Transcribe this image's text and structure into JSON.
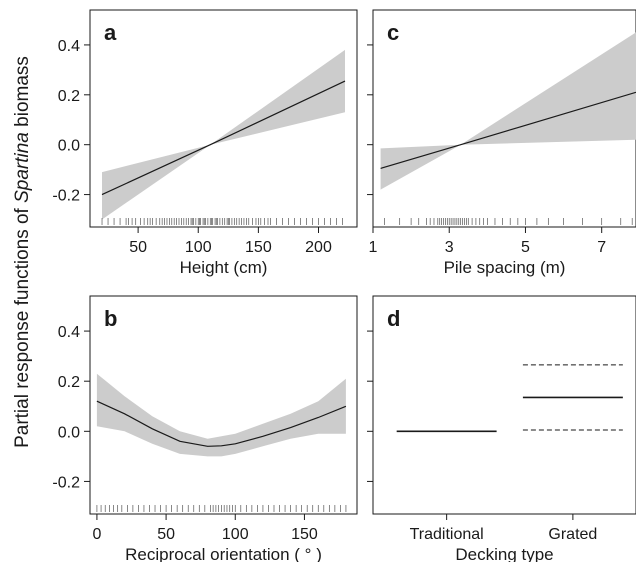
{
  "figure": {
    "ylabel_prefix": "Partial response functions of ",
    "ylabel_italic": "Spartina",
    "ylabel_suffix": " biomass"
  },
  "chart_data": [
    {
      "id": "a",
      "panel_letter": "a",
      "type": "line",
      "xlabel": "Height (cm)",
      "xlim": [
        10,
        232
      ],
      "ylim": [
        -0.33,
        0.54
      ],
      "xticks": [
        50,
        100,
        150,
        200
      ],
      "yticks": [
        -0.2,
        0.0,
        0.2,
        0.4
      ],
      "ytick_labels": [
        "-0.2",
        "0.0",
        "0.2",
        "0.4"
      ],
      "show_yticklabels": true,
      "grid": false,
      "band_color": "#cccccc",
      "line": {
        "x": [
          20,
          110,
          222
        ],
        "y": [
          -0.2,
          0.0,
          0.255
        ]
      },
      "band_lower": [
        -0.3,
        0.0,
        0.13
      ],
      "band_upper": [
        -0.11,
        0.0,
        0.38
      ],
      "rug": [
        20,
        25,
        30,
        35,
        40,
        42,
        45,
        48,
        52,
        55,
        58,
        60,
        62,
        65,
        68,
        70,
        72,
        74,
        76,
        78,
        80,
        82,
        84,
        86,
        88,
        90,
        92,
        94,
        95,
        96,
        98,
        100,
        101,
        102,
        104,
        105,
        106,
        108,
        110,
        111,
        112,
        114,
        115,
        116,
        118,
        120,
        122,
        124,
        125,
        126,
        128,
        130,
        132,
        134,
        136,
        138,
        140,
        142,
        145,
        148,
        150,
        152,
        155,
        158,
        160,
        165,
        170,
        175,
        180,
        185,
        190,
        195,
        200,
        205,
        210,
        215,
        220
      ]
    },
    {
      "id": "c",
      "panel_letter": "c",
      "type": "line",
      "xlabel": "Pile spacing (m)",
      "xlim": [
        1,
        7.9
      ],
      "ylim": [
        -0.33,
        0.54
      ],
      "xticks": [
        1,
        3,
        5,
        7
      ],
      "yticks": [
        -0.2,
        0.0,
        0.2,
        0.4
      ],
      "ytick_labels": [
        "-0.2",
        "0.0",
        "0.2",
        "0.4"
      ],
      "show_yticklabels": false,
      "grid": false,
      "band_color": "#cccccc",
      "line": {
        "x": [
          1.2,
          3.3,
          7.9
        ],
        "y": [
          -0.095,
          0.0,
          0.21
        ]
      },
      "band_lower": [
        -0.18,
        0.0,
        0.02
      ],
      "band_upper": [
        -0.015,
        0.0,
        0.45
      ],
      "rug": [
        1.3,
        1.7,
        2.0,
        2.2,
        2.4,
        2.5,
        2.6,
        2.7,
        2.75,
        2.8,
        2.85,
        2.9,
        2.95,
        3.0,
        3.05,
        3.1,
        3.15,
        3.2,
        3.25,
        3.3,
        3.35,
        3.4,
        3.45,
        3.5,
        3.6,
        3.7,
        3.8,
        3.9,
        4.0,
        4.2,
        4.4,
        4.6,
        4.8,
        5.0,
        5.3,
        5.6,
        6.0,
        6.5,
        7.0,
        7.5,
        7.8
      ]
    },
    {
      "id": "b",
      "panel_letter": "b",
      "type": "line",
      "xlabel": "Reciprocal orientation ( ° )",
      "xlim": [
        -5,
        188
      ],
      "ylim": [
        -0.33,
        0.54
      ],
      "xticks": [
        0,
        50,
        100,
        150
      ],
      "yticks": [
        -0.2,
        0.0,
        0.2,
        0.4
      ],
      "ytick_labels": [
        "-0.2",
        "0.0",
        "0.2",
        "0.4"
      ],
      "show_yticklabels": true,
      "grid": false,
      "band_color": "#cccccc",
      "line": {
        "x": [
          0,
          20,
          40,
          60,
          80,
          90,
          100,
          120,
          140,
          160,
          180
        ],
        "y": [
          0.12,
          0.07,
          0.01,
          -0.04,
          -0.06,
          -0.058,
          -0.05,
          -0.02,
          0.015,
          0.055,
          0.1
        ]
      },
      "band_lower": [
        0.02,
        0.0,
        -0.05,
        -0.09,
        -0.1,
        -0.1,
        -0.09,
        -0.06,
        -0.03,
        -0.01,
        -0.01
      ],
      "band_upper": [
        0.23,
        0.14,
        0.06,
        0.0,
        -0.03,
        -0.02,
        -0.01,
        0.03,
        0.07,
        0.12,
        0.21
      ],
      "rug": [
        0,
        3,
        6,
        9,
        12,
        15,
        18,
        22,
        26,
        30,
        34,
        38,
        42,
        46,
        50,
        54,
        58,
        62,
        66,
        70,
        74,
        78,
        82,
        84,
        86,
        88,
        90,
        92,
        94,
        96,
        98,
        100,
        104,
        108,
        112,
        116,
        120,
        124,
        128,
        132,
        136,
        140,
        144,
        148,
        152,
        156,
        160,
        164,
        168,
        172,
        176,
        180
      ]
    },
    {
      "id": "d",
      "panel_letter": "d",
      "type": "line",
      "xlabel": "Decking type",
      "categories": [
        "Traditional",
        "Grated"
      ],
      "ylim": [
        -0.33,
        0.54
      ],
      "yticks": [
        -0.2,
        0.0,
        0.2,
        0.4
      ],
      "ytick_labels": [
        "-0.2",
        "0.0",
        "0.2",
        "0.4"
      ],
      "show_yticklabels": false,
      "grid": false,
      "series": [
        {
          "category": "Traditional",
          "value": 0.0,
          "lower": 0.0,
          "upper": 0.0
        },
        {
          "category": "Grated",
          "value": 0.135,
          "lower": 0.005,
          "upper": 0.265
        }
      ]
    }
  ]
}
